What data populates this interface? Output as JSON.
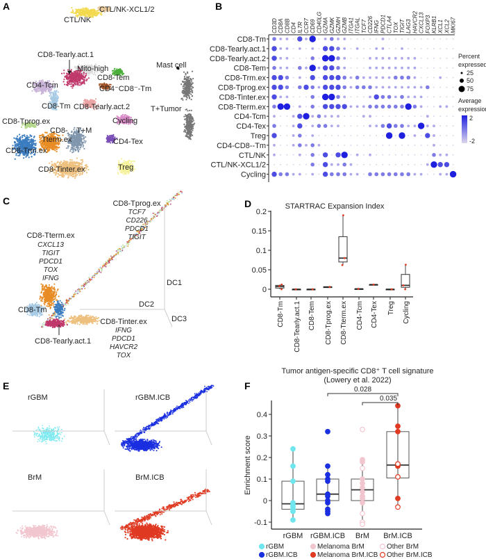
{
  "panels": {
    "A": "A",
    "B": "B",
    "C": "C",
    "D": "D",
    "E": "E",
    "F": "F"
  },
  "panel_a": {
    "clusters": [
      "CTL/NK-XCL1/2",
      "CTL/NK",
      "CD8-Tearly.act.1",
      "Mito-high",
      "CD8-Tem",
      "CD4⁻CD8⁻-Tm",
      "CD4-Tcm",
      "CD8-Tm",
      "CD8-Tearly.act.2",
      "Mast cell",
      "T+Tumor",
      "Cycling",
      "CD8-Tprog.ex",
      "CD8-",
      "Tterm.ex",
      "T+M",
      "CD4-Tex",
      "CD8-Trm.ex",
      "CD8-Tinter.ex",
      "Treg"
    ],
    "colors": {
      "CTL/NK": "#f2d94e",
      "CTL/NK-XCL1/2": "#e6c89a",
      "Mito-high": "#dcdcdc",
      "CD8-Tearly.act.1": "#c0396b",
      "CD8-Tem": "#4cae3a",
      "CD4CD8-Tm": "#a2552a",
      "CD4-Tcm": "#c9b3d9",
      "CD8-Tm": "#a8cbe5",
      "CD8-Tearly.act.2": "#eba3a3",
      "Cycling": "#d98cc7",
      "CD8-Tprog.ex": "#b5d98a",
      "CD8-Trm.ex": "#3b7dbf",
      "CD8-Tterm.ex": "#e88c25",
      "T+M": "#8096ad",
      "CD4-Tex": "#7b4fb8",
      "CD8-Tinter.ex": "#eec07f",
      "Treg": "#f6f29a",
      "T+Tumor": "#777777",
      "Mast cell": "#111111"
    }
  },
  "panel_b": {
    "genes": [
      "CD3D",
      "CD8A",
      "CD8B",
      "CD4",
      "IL7R",
      "CCR7",
      "CD69",
      "CD40LG",
      "GZMA",
      "GZMK",
      "GZMH",
      "GZMB",
      "ITGA1",
      "ITGAL",
      "TCF7",
      "CD226",
      "IFNG",
      "PDCD1",
      "CTLA4",
      "TOX",
      "TIGIT",
      "LAG3",
      "HAVCR2",
      "CXCL13",
      "FOXP3",
      "KLRB1",
      "XCL1",
      "XCL2",
      "MKI67"
    ],
    "rows": [
      "CD8-Tm",
      "CD8-Tearly.act.1",
      "CD8-Tearly.act.2",
      "CD8-Tem",
      "CD8-Trm.ex",
      "CD8-Tprog.ex",
      "CD8-Tinter.ex",
      "CD8-Tterm.ex",
      "CD4-Tcm",
      "CD4-Tex",
      "Treg",
      "CD4-CD8--Tm",
      "CTL/NK",
      "CTL/NK-XCL1/2",
      "Cycling"
    ],
    "dot_levels_0to4": [
      "21103140121100000100000000000",
      "31101010332101001100100000000",
      "31100020442100011111111000000",
      "21102141332100011111111000000",
      "33201030333212111112221000100",
      "33202321333212221111111120000",
      "31100020442100013221211100000",
      "24401020333311122222242100110",
      "10013412111000110000000010000",
      "20013012211000011232211411000",
      "30012010000000000040401031000",
      "10012121000000000000000001000",
      "10001020303401010000000002110",
      "00000020311210000000000014330",
      "32211010322211022222221100114"
    ],
    "legend_size_title": [
      "Percent",
      "expressed"
    ],
    "legend_sizes": [
      "25",
      "50",
      "75"
    ],
    "legend_color_title": [
      "Average",
      "expression"
    ],
    "legend_color_range": [
      "2",
      "-2"
    ],
    "color_low": "#dcd6ec",
    "color_high": "#1f1fe0"
  },
  "panel_c": {
    "tprog": {
      "title": "CD8-Tprog.ex",
      "genes": [
        "TCF7",
        "CD226",
        "PDCD1",
        "TIGIT"
      ]
    },
    "tterm": {
      "title": "CD8-Tterm.ex",
      "genes": [
        "CXCL13",
        "TIGIT",
        "PDCD1",
        "TOX",
        "IFNG"
      ]
    },
    "tinter": {
      "title": "CD8-Tinter.ex",
      "genes": [
        "IFNG",
        "PDCD1",
        "HAVCR2",
        "TOX"
      ]
    },
    "tm": "CD8-Tm",
    "tearly": "CD8-Tearly.act.1",
    "axes": [
      "DC1",
      "DC2",
      "DC3"
    ]
  },
  "chart_data": [
    {
      "type": "box",
      "title": "STARTRAC Expansion Index",
      "categories": [
        "CD8-Tm",
        "CD8-Tearly.act.1",
        "CD8-Tem",
        "CD8-Tprog.ex",
        "CD8-Tterm.ex",
        "CD4-Tcm",
        "CD4-Tex",
        "Treg",
        "Cycling"
      ],
      "boxes": [
        {
          "min": 0,
          "q1": 0.003,
          "median": 0.007,
          "q3": 0.01,
          "max": 0.012,
          "points": [
            0,
            0.008,
            0.012
          ]
        },
        {
          "min": 0,
          "q1": 0,
          "median": 0,
          "q3": 0,
          "max": 0,
          "points": [
            0
          ]
        },
        {
          "min": 0,
          "q1": 0,
          "median": 0,
          "q3": 0,
          "max": 0,
          "points": [
            0
          ]
        },
        {
          "min": 0.006,
          "q1": 0.006,
          "median": 0.006,
          "q3": 0.006,
          "max": 0.006,
          "points": [
            0.006
          ]
        },
        {
          "min": 0.062,
          "q1": 0.07,
          "median": 0.08,
          "q3": 0.135,
          "max": 0.19,
          "points": [
            0.062,
            0.08,
            0.19
          ]
        },
        {
          "min": 0.001,
          "q1": 0.001,
          "median": 0.001,
          "q3": 0.001,
          "max": 0.001,
          "points": [
            0.001
          ]
        },
        {
          "min": 0.012,
          "q1": 0.012,
          "median": 0.012,
          "q3": 0.012,
          "max": 0.012,
          "points": [
            0.012
          ]
        },
        {
          "min": 0,
          "q1": 0,
          "median": 0,
          "q3": 0,
          "max": 0,
          "points": [
            0
          ]
        },
        {
          "min": 0,
          "q1": 0.005,
          "median": 0.01,
          "q3": 0.038,
          "max": 0.063,
          "points": [
            0,
            0.01,
            0.063
          ]
        }
      ],
      "yticks": [
        "0",
        "0.05",
        "0.1",
        "0.15",
        "0.2"
      ],
      "ylim": [
        -0.02,
        0.205
      ]
    },
    {
      "type": "box",
      "title": [
        "Tumor antigen-specific CD8⁺ T cell signature",
        "(Lowery et al. 2022)"
      ],
      "ylabel": "Enrichment score",
      "categories": [
        "rGBM",
        "rGBM.ICB",
        "BrM",
        "BrM.ICB"
      ],
      "yticks": [
        "-0.1",
        "0",
        "0.1",
        "0.2",
        "0.3",
        "0.4"
      ],
      "ylim": [
        -0.13,
        0.47
      ],
      "boxes": [
        {
          "min": -0.09,
          "q1": -0.04,
          "median": -0.015,
          "q3": 0.09,
          "max": 0.24
        },
        {
          "min": -0.06,
          "q1": 0,
          "median": 0.03,
          "q3": 0.1,
          "max": 0.16
        },
        {
          "min": -0.11,
          "q1": 0,
          "median": 0.05,
          "q3": 0.1,
          "max": 0.19
        },
        {
          "min": -0.03,
          "q1": 0.105,
          "median": 0.165,
          "q3": 0.32,
          "max": 0.44
        }
      ],
      "points": [
        {
          "group": "rGBM",
          "values": [
            0.24,
            0.16,
            0.09,
            -0.01,
            -0.02,
            -0.03,
            -0.04,
            -0.05,
            -0.09
          ]
        },
        {
          "group": "rGBM.ICB",
          "values": [
            0.32,
            0.16,
            0.12,
            0.1,
            0.09,
            0.03,
            0.02,
            0,
            -0.01,
            -0.04,
            -0.05,
            -0.06
          ]
        },
        {
          "group": "Melanoma BrM",
          "values": [
            0.19,
            0.18,
            0.1,
            0.08,
            0.06,
            0.04,
            0.02,
            0.01,
            -0.01
          ]
        },
        {
          "group": "Other BrM",
          "values": [
            0.33,
            0.15,
            -0.06,
            -0.1,
            -0.11
          ]
        },
        {
          "group": "Melanoma BrM.ICB",
          "values": [
            0.44,
            0.345,
            0.32,
            0.16,
            0.01
          ]
        },
        {
          "group": "Other BrM.ICB",
          "values": [
            0.17,
            0.11,
            -0.03
          ]
        }
      ],
      "comparisons": [
        {
          "from": "rGBM.ICB",
          "to": "BrM.ICB",
          "p": "0.028"
        },
        {
          "from": "BrM",
          "to": "BrM.ICB",
          "p": "0.035"
        }
      ],
      "legend": [
        {
          "label": "rGBM",
          "color": "#6fe6ee",
          "filled": true
        },
        {
          "label": "rGBM.ICB",
          "color": "#1a2fe0",
          "filled": true
        },
        {
          "label": "Melanoma BrM",
          "color": "#f2c6cf",
          "filled": true
        },
        {
          "label": "Melanoma BrM.ICB",
          "color": "#e03a22",
          "filled": true
        },
        {
          "label": "Other BrM",
          "color": "#f2c6cf",
          "filled": false
        },
        {
          "label": "Other BrM.ICB",
          "color": "#e03a22",
          "filled": false
        }
      ],
      "legend_placement": "bottom"
    }
  ],
  "panel_e": {
    "labels": [
      "rGBM",
      "rGBM.ICB",
      "BrM",
      "BrM.ICB"
    ],
    "colors": [
      "#7fe9f0",
      "#1a2fe0",
      "#f2c6cf",
      "#e03a22"
    ]
  }
}
